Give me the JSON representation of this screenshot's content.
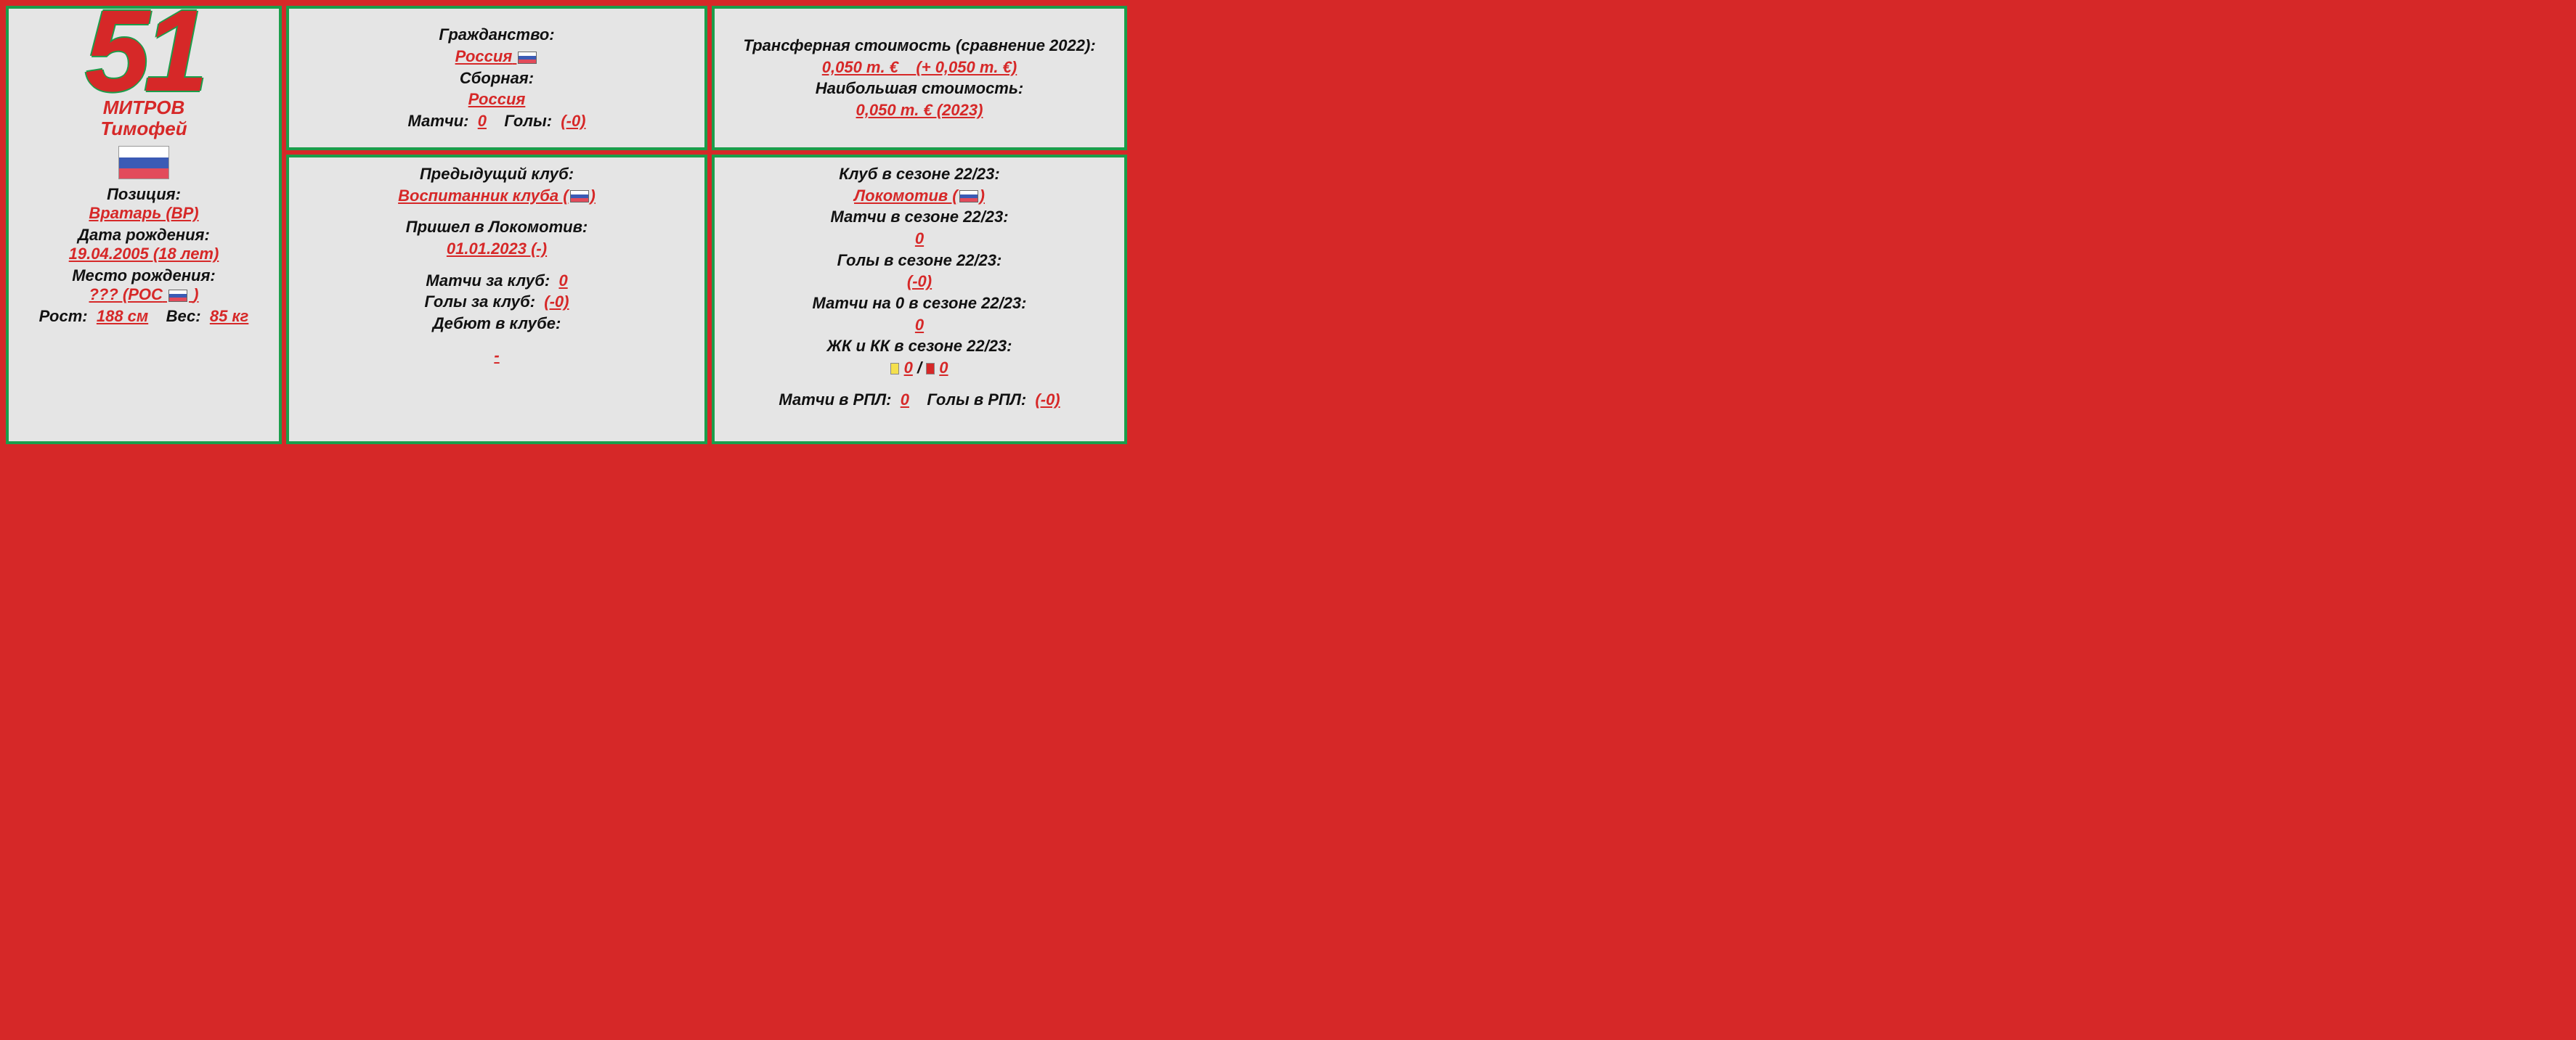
{
  "colors": {
    "outer_bg": "#d62828",
    "panel_bg": "#e5e5e5",
    "panel_border": "#1b9e4b",
    "value_red": "#d62828",
    "text_black": "#111111",
    "yellow_card": "#f4e04d",
    "red_card": "#d62828",
    "flag_white": "#ffffff",
    "flag_blue": "#3b5bb5",
    "flag_red": "#e24b5b"
  },
  "player": {
    "number": "51",
    "surname": "МИТРОВ",
    "firstname": "Тимофей",
    "position_label": "Позиция:",
    "position_value": "Вратарь (ВР)",
    "dob_label": "Дата рождения:",
    "dob_value": "19.04.2005 (18 лет)",
    "pob_label": "Место рождения:",
    "pob_value_prefix": "??? (РОС",
    "pob_value_suffix": ")",
    "height_label": "Рост:",
    "height_value": "188 см",
    "weight_label": "Вес:",
    "weight_value": "85 кг"
  },
  "citizenship": {
    "label": "Гражданство:",
    "value": "Россия",
    "team_label": "Сборная:",
    "team_value": "Россия",
    "matches_label": "Матчи:",
    "matches_value": "0",
    "goals_label": "Голы:",
    "goals_value": "(-0)"
  },
  "transfer": {
    "value_label": "Трансферная стоимость (сравнение 2022):",
    "value_current": "0,050 m. €",
    "value_delta": "(+ 0,050 m. €)",
    "peak_label": "Наибольшая стоимость:",
    "peak_value": "0,050 m. €  (2023)"
  },
  "club_history": {
    "prev_label": "Предыдущий клуб:",
    "prev_value": "Воспитанник клуба (",
    "prev_value_suffix": ")",
    "joined_label": "Пришел в Локомотив:",
    "joined_value": "01.01.2023 (-)",
    "club_matches_label": "Матчи за клуб:",
    "club_matches_value": "0",
    "club_goals_label": "Голы за клуб:",
    "club_goals_value": "(-0)",
    "debut_label": "Дебют в клубе:",
    "debut_value": "-"
  },
  "season": {
    "club_label": "Клуб в сезоне 22/23:",
    "club_value": "Локомотив (",
    "club_value_suffix": ")",
    "matches_label": "Матчи в сезоне 22/23:",
    "matches_value": "0",
    "goals_label": "Голы в сезоне 22/23:",
    "goals_value": "(-0)",
    "cleansheets_label": "Матчи на 0 в сезоне 22/23:",
    "cleansheets_value": "0",
    "cards_label": "ЖК и КК в сезоне 22/23:",
    "yellow_count": "0",
    "card_sep": " / ",
    "red_count": "0",
    "rpl_matches_label": "Матчи в РПЛ:",
    "rpl_matches_value": "0",
    "rpl_goals_label": "Голы в РПЛ:",
    "rpl_goals_value": "(-0)"
  }
}
